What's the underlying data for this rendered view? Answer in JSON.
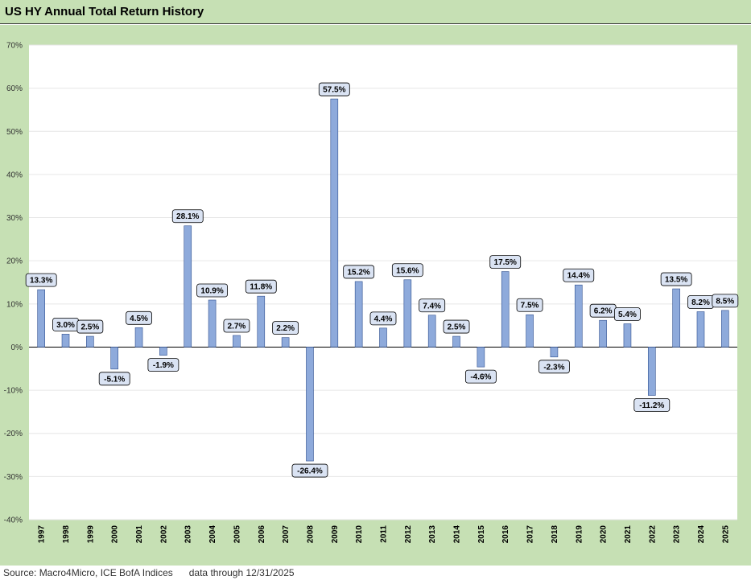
{
  "chart_data": {
    "type": "bar",
    "title": "US HY Annual Total Return History",
    "xlabel": "",
    "ylabel": "",
    "ylim": [
      -40,
      70
    ],
    "yticks": [
      "70%",
      "60%",
      "50%",
      "40%",
      "30%",
      "20%",
      "10%",
      "0%",
      "-10%",
      "-20%",
      "-30%",
      "-40%"
    ],
    "ytick_values": [
      70,
      60,
      50,
      40,
      30,
      20,
      10,
      0,
      -10,
      -20,
      -30,
      -40
    ],
    "grid": true,
    "legend": "none",
    "colors": {
      "bar": "#8eaadb",
      "bar_stroke": "#2f4f8f",
      "frame": "#c6e0b4",
      "label_box": "#dae3f3"
    },
    "categories": [
      "1997",
      "1998",
      "1999",
      "2000",
      "2001",
      "2002",
      "2003",
      "2004",
      "2005",
      "2006",
      "2007",
      "2008",
      "2009",
      "2010",
      "2011",
      "2012",
      "2013",
      "2014",
      "2015",
      "2016",
      "2017",
      "2018",
      "2019",
      "2020",
      "2021",
      "2022",
      "2023",
      "2024",
      "2025"
    ],
    "values": [
      13.3,
      3.0,
      2.5,
      -5.1,
      4.5,
      -1.9,
      28.1,
      10.9,
      2.7,
      11.8,
      2.2,
      -26.4,
      57.5,
      15.2,
      4.4,
      15.6,
      7.4,
      2.5,
      -4.6,
      17.5,
      7.5,
      -2.3,
      14.4,
      6.2,
      5.4,
      -11.2,
      13.5,
      8.2,
      8.5
    ],
    "data_labels": [
      "13.3%",
      "3.0%",
      "2.5%",
      "-5.1%",
      "4.5%",
      "-1.9%",
      "28.1%",
      "10.9%",
      "2.7%",
      "11.8%",
      "2.2%",
      "-26.4%",
      "57.5%",
      "15.2%",
      "4.4%",
      "15.6%",
      "7.4%",
      "2.5%",
      "-4.6%",
      "17.5%",
      "7.5%",
      "-2.3%",
      "14.4%",
      "6.2%",
      "5.4%",
      "-11.2%",
      "13.5%",
      "8.2%",
      "8.5%"
    ]
  },
  "footer": {
    "source": "Source: Macro4Micro, ICE BofA Indices      data through 12/31/2025"
  }
}
